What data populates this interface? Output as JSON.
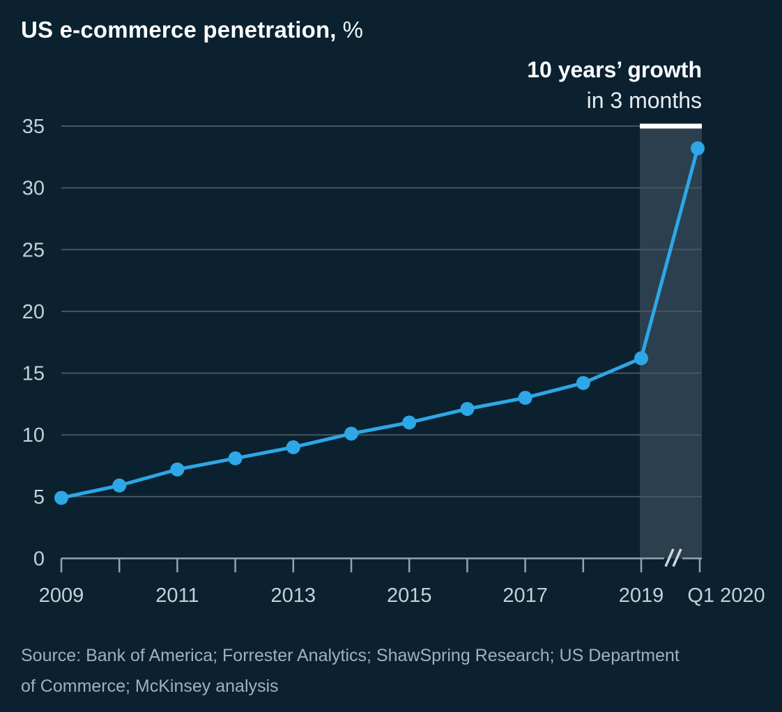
{
  "title": {
    "main": "US e-commerce penetration,",
    "unit": "%"
  },
  "annotation": {
    "line1": "10 years’ growth",
    "line2": "in 3 months"
  },
  "source": {
    "line1": "Source: Bank of America; Forrester Analytics; ShawSpring Research; US Department",
    "line2": "of Commerce; McKinsey analysis"
  },
  "colors": {
    "background": "#0b2130",
    "line": "#2da7e6",
    "point": "#2da7e6",
    "gridline": "#46565f",
    "axis": "#97a4ad",
    "tick_label": "#c6d0d8",
    "highlight_band": "#2b3f4e",
    "growth_marker_bar": "#ffffff",
    "axis_break": "#cdd6dc"
  },
  "chart_data": {
    "type": "line",
    "title": "US e-commerce penetration, %",
    "categories": [
      "2009",
      "2010",
      "2011",
      "2012",
      "2013",
      "2014",
      "2015",
      "2016",
      "2017",
      "2018",
      "2019",
      "Q1 2020"
    ],
    "series": [
      {
        "name": "US e-commerce penetration",
        "values": [
          4.9,
          5.9,
          7.2,
          8.1,
          9.0,
          10.1,
          11.0,
          12.1,
          13.0,
          14.2,
          16.2,
          33.2
        ]
      }
    ],
    "ylim": [
      0,
      35
    ],
    "y_ticks": [
      0,
      5,
      10,
      15,
      20,
      25,
      30,
      35
    ],
    "x_tick_labels_shown": [
      "2009",
      "2011",
      "2013",
      "2015",
      "2017",
      "2019",
      "Q1 2020"
    ],
    "grid": "horizontal",
    "legend": "none",
    "axis_break_before_last_category": true,
    "highlight_band": {
      "from_category": "2019",
      "to_category": "Q1 2020",
      "annotation": "10 years’ growth in 3 months"
    }
  }
}
